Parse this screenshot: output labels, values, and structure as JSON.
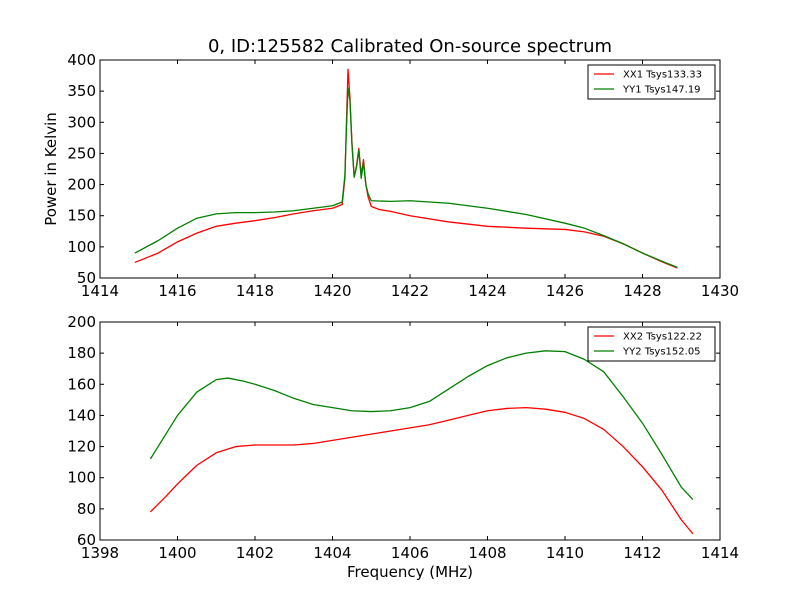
{
  "figure": {
    "title": "0, ID:125582 Calibrated On-source spectrum",
    "xlabel": "Frequency (MHz)",
    "ylabel": "Power in Kelvin"
  },
  "chart_data": [
    {
      "type": "line",
      "title": "0, ID:125582 Calibrated On-source spectrum",
      "xlabel": "",
      "ylabel": "Power in Kelvin",
      "xlim": [
        1414,
        1430
      ],
      "ylim": [
        50,
        400
      ],
      "xticks": [
        1414,
        1416,
        1418,
        1420,
        1422,
        1424,
        1426,
        1428,
        1430
      ],
      "yticks": [
        50,
        100,
        150,
        200,
        250,
        300,
        350,
        400
      ],
      "grid": false,
      "legend_position": "top-right",
      "series": [
        {
          "name": "XX1 Tsys133.33",
          "color": "#ff0000",
          "points": [
            [
              1414.9,
              75
            ],
            [
              1415.5,
              90
            ],
            [
              1416,
              108
            ],
            [
              1416.5,
              122
            ],
            [
              1417,
              133
            ],
            [
              1417.5,
              138
            ],
            [
              1418,
              142
            ],
            [
              1418.5,
              147
            ],
            [
              1419,
              153
            ],
            [
              1419.5,
              158
            ],
            [
              1420,
              162
            ],
            [
              1420.25,
              168
            ],
            [
              1420.32,
              210
            ],
            [
              1420.36,
              300
            ],
            [
              1420.4,
              385
            ],
            [
              1420.45,
              340
            ],
            [
              1420.5,
              270
            ],
            [
              1420.56,
              212
            ],
            [
              1420.62,
              230
            ],
            [
              1420.68,
              258
            ],
            [
              1420.74,
              215
            ],
            [
              1420.8,
              240
            ],
            [
              1420.86,
              200
            ],
            [
              1420.92,
              180
            ],
            [
              1421,
              165
            ],
            [
              1421.2,
              160
            ],
            [
              1421.5,
              157
            ],
            [
              1422,
              150
            ],
            [
              1423,
              140
            ],
            [
              1424,
              133
            ],
            [
              1425,
              130
            ],
            [
              1425.5,
              129
            ],
            [
              1426,
              128
            ],
            [
              1426.5,
              124
            ],
            [
              1427,
              117
            ],
            [
              1427.5,
              105
            ],
            [
              1428,
              90
            ],
            [
              1428.5,
              76
            ],
            [
              1428.9,
              66
            ]
          ]
        },
        {
          "name": "YY1 Tsys147.19",
          "color": "#008000",
          "points": [
            [
              1414.9,
              90
            ],
            [
              1415.5,
              110
            ],
            [
              1416,
              130
            ],
            [
              1416.5,
              146
            ],
            [
              1417,
              153
            ],
            [
              1417.5,
              155
            ],
            [
              1418,
              155
            ],
            [
              1418.5,
              156
            ],
            [
              1419,
              158
            ],
            [
              1419.5,
              162
            ],
            [
              1420,
              166
            ],
            [
              1420.25,
              172
            ],
            [
              1420.32,
              215
            ],
            [
              1420.36,
              290
            ],
            [
              1420.4,
              355
            ],
            [
              1420.45,
              335
            ],
            [
              1420.5,
              265
            ],
            [
              1420.56,
              212
            ],
            [
              1420.62,
              228
            ],
            [
              1420.68,
              255
            ],
            [
              1420.74,
              210
            ],
            [
              1420.8,
              235
            ],
            [
              1420.86,
              200
            ],
            [
              1420.92,
              185
            ],
            [
              1421,
              174
            ],
            [
              1421.5,
              173
            ],
            [
              1422,
              174
            ],
            [
              1423,
              170
            ],
            [
              1424,
              162
            ],
            [
              1425,
              152
            ],
            [
              1426,
              138
            ],
            [
              1426.5,
              130
            ],
            [
              1427,
              118
            ],
            [
              1427.5,
              105
            ],
            [
              1428,
              90
            ],
            [
              1428.5,
              77
            ],
            [
              1428.9,
              67
            ]
          ]
        }
      ]
    },
    {
      "type": "line",
      "title": "",
      "xlabel": "Frequency (MHz)",
      "ylabel": "",
      "xlim": [
        1398,
        1414
      ],
      "ylim": [
        60,
        200
      ],
      "xticks": [
        1398,
        1400,
        1402,
        1404,
        1406,
        1408,
        1410,
        1412,
        1414
      ],
      "yticks": [
        60,
        80,
        100,
        120,
        140,
        160,
        180,
        200
      ],
      "grid": false,
      "legend_position": "top-right",
      "series": [
        {
          "name": "XX2 Tsys122.22",
          "color": "#ff0000",
          "points": [
            [
              1399.3,
              78
            ],
            [
              1399.7,
              88
            ],
            [
              1400,
              96
            ],
            [
              1400.5,
              108
            ],
            [
              1401,
              116
            ],
            [
              1401.5,
              120
            ],
            [
              1402,
              121
            ],
            [
              1402.5,
              121
            ],
            [
              1403,
              121
            ],
            [
              1403.5,
              122
            ],
            [
              1404,
              124
            ],
            [
              1404.5,
              126
            ],
            [
              1405,
              128
            ],
            [
              1405.5,
              130
            ],
            [
              1406,
              132
            ],
            [
              1406.5,
              134
            ],
            [
              1407,
              137
            ],
            [
              1407.5,
              140
            ],
            [
              1408,
              143
            ],
            [
              1408.5,
              144.5
            ],
            [
              1409,
              145
            ],
            [
              1409.5,
              144
            ],
            [
              1410,
              142
            ],
            [
              1410.5,
              138
            ],
            [
              1411,
              131
            ],
            [
              1411.5,
              120
            ],
            [
              1412,
              107
            ],
            [
              1412.5,
              92
            ],
            [
              1413,
              73
            ],
            [
              1413.3,
              64
            ]
          ]
        },
        {
          "name": "YY2 Tsys152.05",
          "color": "#008000",
          "points": [
            [
              1399.3,
              112
            ],
            [
              1399.5,
              120
            ],
            [
              1400,
              140
            ],
            [
              1400.5,
              155
            ],
            [
              1401,
              163
            ],
            [
              1401.3,
              164
            ],
            [
              1401.7,
              162
            ],
            [
              1402,
              160
            ],
            [
              1402.5,
              156
            ],
            [
              1403,
              151
            ],
            [
              1403.5,
              147
            ],
            [
              1404,
              145
            ],
            [
              1404.5,
              143
            ],
            [
              1405,
              142.5
            ],
            [
              1405.5,
              143
            ],
            [
              1406,
              145
            ],
            [
              1406.5,
              149
            ],
            [
              1407,
              157
            ],
            [
              1407.5,
              165
            ],
            [
              1408,
              172
            ],
            [
              1408.5,
              177
            ],
            [
              1409,
              180
            ],
            [
              1409.5,
              181.5
            ],
            [
              1410,
              181
            ],
            [
              1410.5,
              176
            ],
            [
              1411,
              168
            ],
            [
              1411.5,
              152
            ],
            [
              1412,
              135
            ],
            [
              1412.5,
              115
            ],
            [
              1413,
              94
            ],
            [
              1413.3,
              86
            ]
          ]
        }
      ]
    }
  ]
}
